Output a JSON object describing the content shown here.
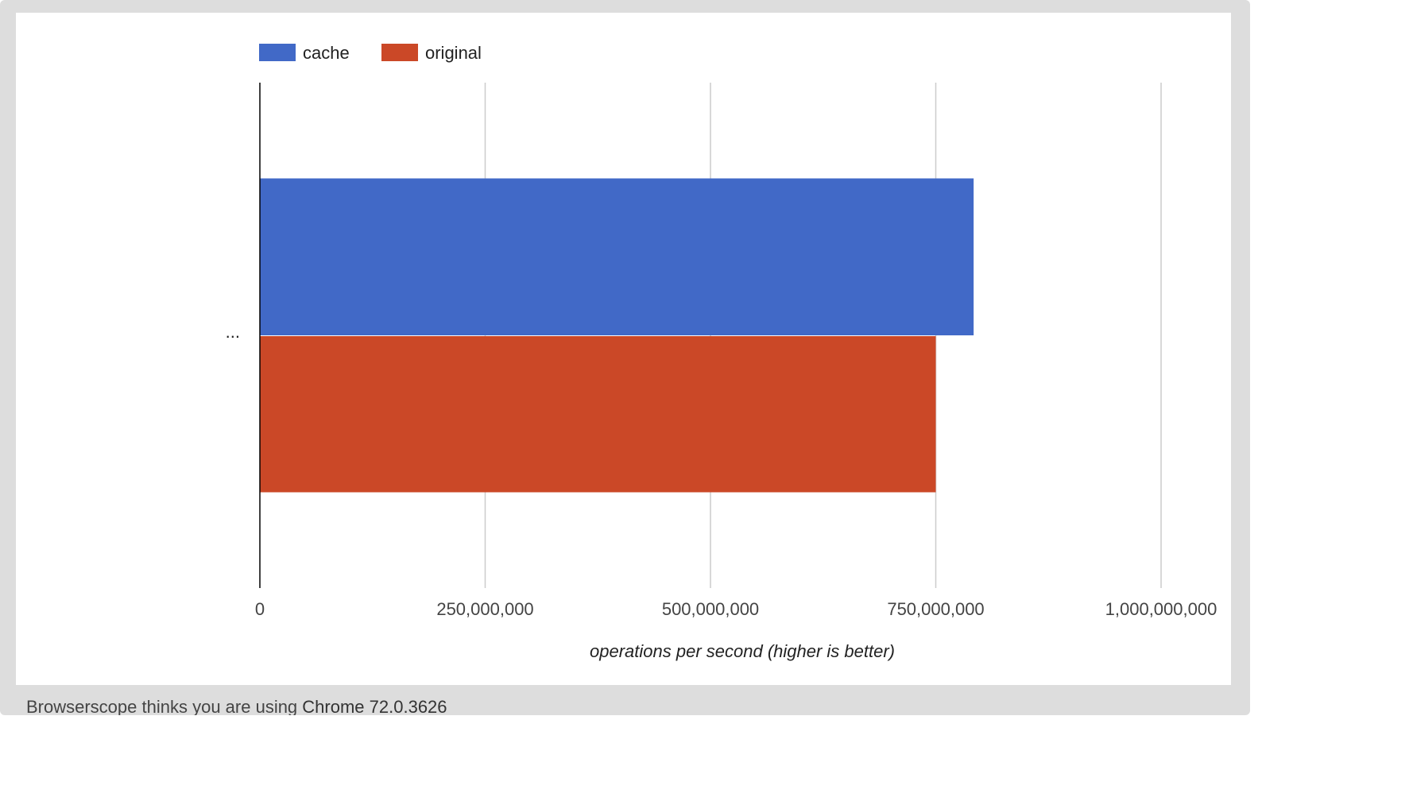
{
  "chart_data": {
    "type": "bar",
    "orientation": "horizontal",
    "categories": [
      "..."
    ],
    "series": [
      {
        "name": "cache",
        "color": "#4169c7",
        "values": [
          792000000
        ]
      },
      {
        "name": "original",
        "color": "#cb4827",
        "values": [
          750000000
        ]
      }
    ],
    "xlabel": "operations per second (higher is better)",
    "ylabel": "",
    "xlim": [
      0,
      1000000000
    ],
    "xticks": [
      0,
      250000000,
      500000000,
      750000000,
      1000000000
    ],
    "xtick_labels": [
      "0",
      "250,000,000",
      "500,000,000",
      "750,000,000",
      "1,000,000,000"
    ],
    "grid": true,
    "legend_position": "top-left"
  },
  "footer": {
    "prefix": "Browserscope thinks you are using ",
    "browser": "Chrome 72.0.3626"
  }
}
